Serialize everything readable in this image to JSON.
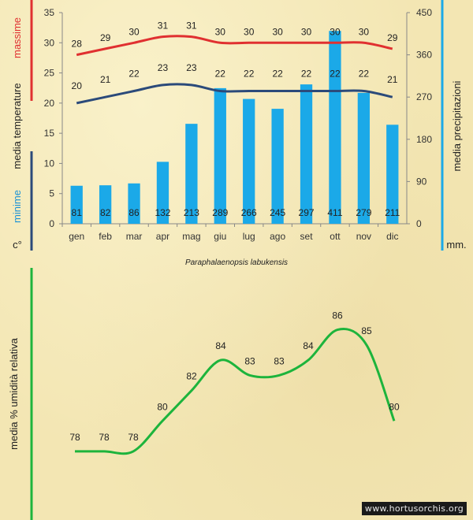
{
  "chart_data": [
    {
      "type": "bar",
      "title": "Paraphalaenopsis labukensis",
      "categories": [
        "gen",
        "feb",
        "mar",
        "apr",
        "mag",
        "giu",
        "lug",
        "ago",
        "set",
        "ott",
        "nov",
        "dic"
      ],
      "series": [
        {
          "name": "media precipitazioni",
          "type": "bar",
          "axis": "right",
          "color": "#1ba9e8",
          "values": [
            81,
            82,
            86,
            132,
            213,
            289,
            266,
            245,
            297,
            411,
            279,
            211
          ]
        },
        {
          "name": "massime",
          "type": "line",
          "axis": "left",
          "color": "#e03030",
          "values": [
            28,
            29,
            30,
            31,
            31,
            30,
            30,
            30,
            30,
            30,
            30,
            29
          ]
        },
        {
          "name": "minime",
          "type": "line",
          "axis": "left",
          "color": "#2b4a7a",
          "values": [
            20,
            21,
            22,
            23,
            23,
            22,
            22,
            22,
            22,
            22,
            22,
            21
          ]
        }
      ],
      "ylim": [
        0,
        35
      ],
      "yticks": [
        0,
        5,
        10,
        15,
        20,
        25,
        30,
        35
      ],
      "ylim_right": [
        0,
        450
      ],
      "yticks_right": [
        0,
        90,
        180,
        270,
        360,
        450
      ],
      "left_axis_labels": {
        "massime": "massime",
        "media": "media  temperature",
        "minime": "minime",
        "unit": "c°"
      },
      "right_axis_labels": {
        "title": "media  precipitazioni",
        "unit": "mm."
      },
      "grid": false
    },
    {
      "type": "line",
      "categories": [
        "gen",
        "feb",
        "mar",
        "apr",
        "mag",
        "giu",
        "lug",
        "ago",
        "set",
        "ott",
        "nov",
        "dic"
      ],
      "series": [
        {
          "name": "media %  umidità relativa",
          "color": "#1db43c",
          "values": [
            78,
            78,
            78,
            80,
            82,
            84,
            83,
            83,
            84,
            86,
            85,
            80
          ]
        }
      ],
      "ylim": [
        74,
        88
      ],
      "ylabel": "media %  umidità relativa"
    }
  ],
  "watermark": "www.hortusorchis.org",
  "colors": {
    "background": "#f3e6b3",
    "bar": "#1ba9e8",
    "max_line": "#e03030",
    "min_line": "#2b4a7a",
    "humidity_line": "#1db43c",
    "right_axis": "#1ba9e8"
  }
}
